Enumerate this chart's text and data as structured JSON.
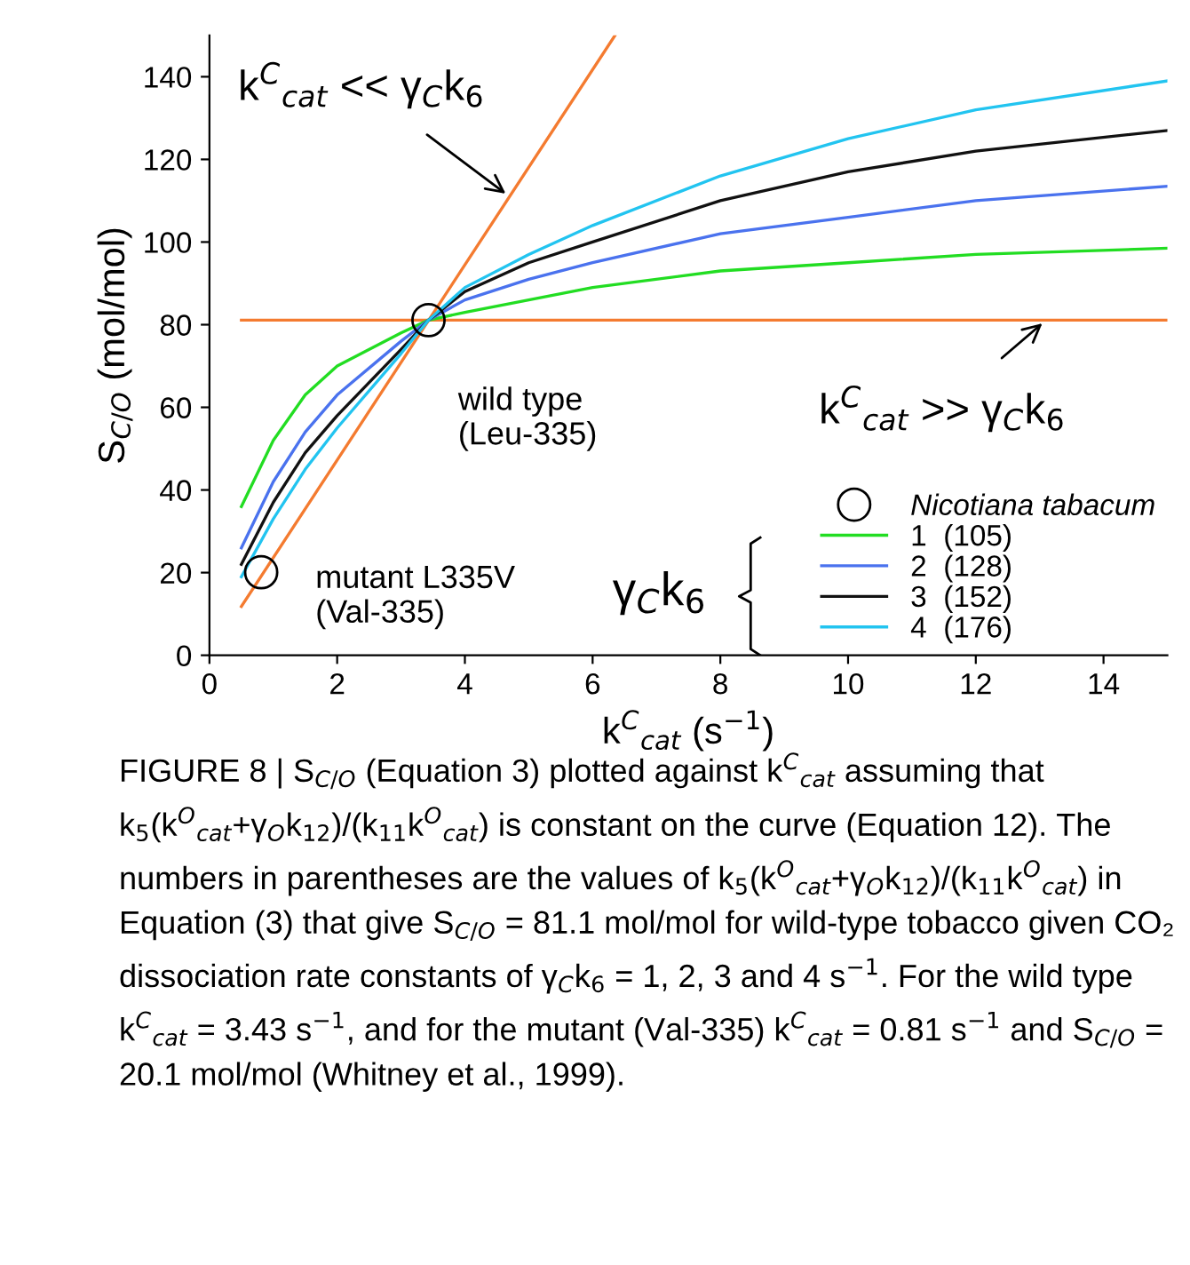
{
  "chart_data": {
    "type": "line",
    "xlabel": "k$^{C}$$_{cat}$ (s$^{−1}$)",
    "ylabel": "S$_{C/O}$ (mol/mol)",
    "xlim": [
      0,
      15
    ],
    "ylim": [
      0,
      150
    ],
    "xticks": [
      0,
      2,
      4,
      6,
      8,
      10,
      12,
      14
    ],
    "yticks": [
      0,
      20,
      40,
      60,
      80,
      100,
      120,
      140
    ],
    "grid": false,
    "legend": "bottom right",
    "marker": "none",
    "line_style": "solid",
    "series": [
      {
        "name": "Nicotiana tabacum",
        "type": "scatter",
        "marker": "circle",
        "color": "#000000",
        "x": [
          3.43,
          0.81
        ],
        "values": [
          81.1,
          20.1
        ]
      },
      {
        "color": "#f47b30",
        "x": [
          0.5,
          6.35
        ],
        "values": [
          11.8,
          150
        ]
      },
      {
        "color": "#f47b30",
        "x": [
          0.5,
          15
        ],
        "values": [
          81.1,
          81.1
        ]
      },
      {
        "name": "1  (105)",
        "color": "#22dd22",
        "x": [
          0.5,
          1,
          1.5,
          2,
          3,
          3.43,
          4,
          5,
          6,
          8,
          10,
          12,
          15
        ],
        "values": [
          36,
          52,
          63,
          70,
          78,
          81.1,
          83,
          86,
          89,
          93,
          95,
          97,
          98.5
        ]
      },
      {
        "name": "2  (128)",
        "color": "#4a72ee",
        "x": [
          0.5,
          1,
          1.5,
          2,
          3,
          3.43,
          4,
          5,
          6,
          8,
          10,
          12,
          15
        ],
        "values": [
          26,
          42,
          54,
          63,
          76,
          81.1,
          86,
          91,
          95,
          102,
          106,
          110,
          113.5
        ]
      },
      {
        "name": "3  (152)",
        "color": "#111111",
        "x": [
          0.5,
          1,
          1.5,
          2,
          3,
          3.43,
          4,
          5,
          6,
          8,
          10,
          12,
          15
        ],
        "values": [
          22,
          37,
          49,
          58,
          74,
          81.1,
          88,
          95,
          100,
          110,
          117,
          122,
          127
        ]
      },
      {
        "name": "4  (176)",
        "color": "#22c4f0",
        "x": [
          0.5,
          1,
          1.5,
          2,
          3,
          3.43,
          4,
          5,
          6,
          8,
          10,
          12,
          15
        ],
        "values": [
          19,
          33,
          45,
          55,
          73,
          81.1,
          89,
          97,
          104,
          116,
          125,
          132,
          139
        ]
      }
    ],
    "annotations": [
      {
        "text": "k$^{C}$$_{cat}$ << γ$_{C}$k$_{6}$",
        "x": 4.7,
        "y": 111
      },
      {
        "text": "k$^{C}$$_{cat}$ >> γ$_{C}$k$_{6}$",
        "x": 13.1,
        "y": 81.1
      },
      {
        "text": "wild type\n(Leu-335)",
        "x": 3.43,
        "y": 81.1
      },
      {
        "text": "mutant L335V\n(Val-335)",
        "x": 0.81,
        "y": 20.1
      },
      "γ$_{C}$k$_{6}$",
      "FIGURE 8 | S$_{C/O}$ (Equation 3) plotted against k$^{C}$$_{cat}$ assuming that k$_{5}$(k$^{O}$$_{cat}$+γ$_{O}$k$_{12}$)/(k$_{11}$k$^{O}$$_{cat}$) is constant on the curve (Equation 12). The numbers in parentheses are the values of k$_{5}$(k$^{O}$$_{cat}$+γ$_{O}$k$_{12}$)/(k$_{11}$k$^{O}$$_{cat}$) in Equation (3) that give S$_{C/O}$ = 81.1 mol/mol for wild-type tobacco given CO₂ dissociation rate constants of γ$_{C}$k$_{6}$ = 1, 2, 3 and 4 s$^{−1}$. For the wild type k$^{C}$$_{cat}$ = 3.43 s$^{−1}$, and for the mutant (Val-335) k$^{C}$$_{cat}$ = 0.81 s$^{−1}$ and S$_{C/O}$ = 20.1 mol/mol (Whitney et al., 1999)."
    ]
  }
}
